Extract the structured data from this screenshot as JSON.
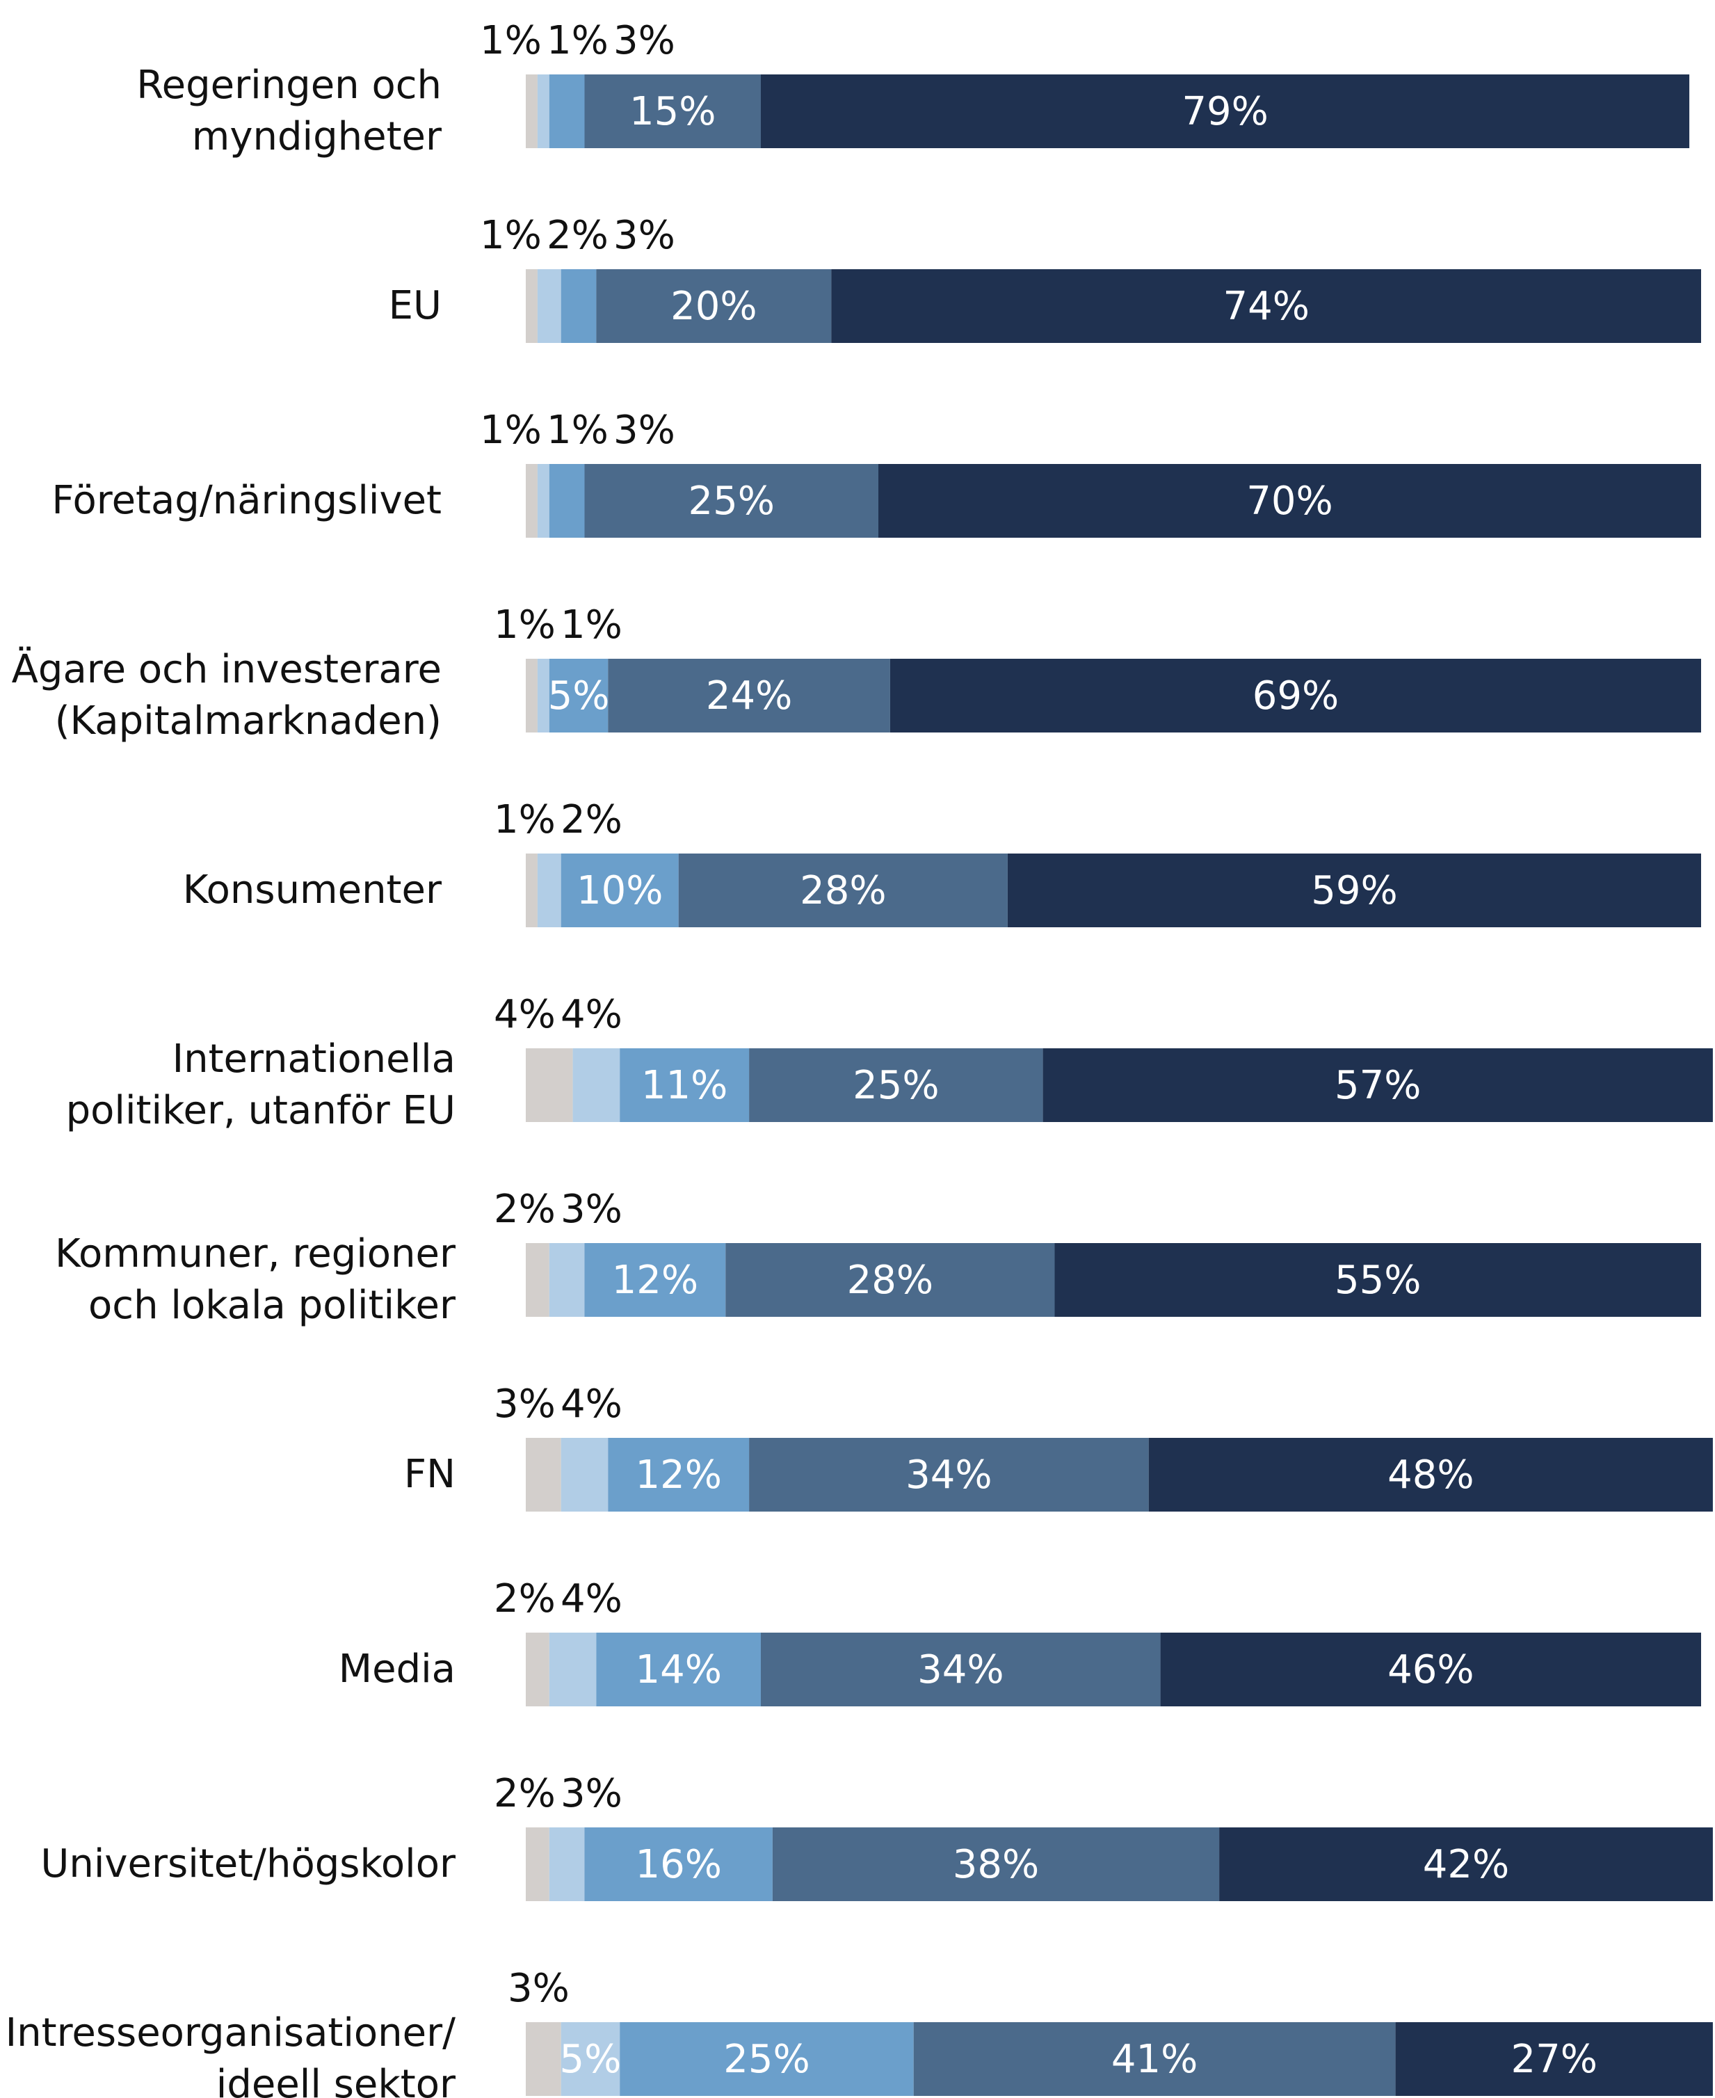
{
  "chart_data": {
    "type": "stacked_bar_horizontal",
    "categories": [
      "Regeringen och\nmyndigheter",
      "EU",
      "Företag/näringslivet",
      "Ägare och investerare\n(Kapitalmarknaden)",
      "Konsumenter",
      "Internationella\npolitiker, utanför EU",
      "Kommuner, regioner\noch lokala politiker",
      "FN",
      "Media",
      "Universitet/högskolor",
      "Intresseorganisationer/\nideell sektor"
    ],
    "series": [
      {
        "color": "#d3cfcc",
        "values": [
          1,
          1,
          1,
          1,
          1,
          4,
          2,
          3,
          2,
          2,
          3
        ]
      },
      {
        "color": "#b1cde6",
        "values": [
          1,
          2,
          1,
          1,
          2,
          4,
          3,
          4,
          4,
          3,
          5
        ]
      },
      {
        "color": "#6b9fcb",
        "values": [
          3,
          3,
          3,
          5,
          10,
          11,
          12,
          12,
          14,
          16,
          25
        ]
      },
      {
        "color": "#4b6a8b",
        "values": [
          15,
          20,
          25,
          24,
          28,
          25,
          28,
          34,
          34,
          38,
          41
        ]
      },
      {
        "color": "#1f3150",
        "values": [
          79,
          74,
          70,
          69,
          59,
          57,
          55,
          48,
          46,
          42,
          27
        ]
      }
    ],
    "value_labels": [
      [
        "1%",
        "1%",
        "1%",
        "1%",
        "1%",
        "4%",
        "2%",
        "3%",
        "2%",
        "2%",
        "3%"
      ],
      [
        "1%",
        "2%",
        "1%",
        "1%",
        "2%",
        "4%",
        "3%",
        "4%",
        "4%",
        "3%",
        "5%"
      ],
      [
        "3%",
        "3%",
        "3%",
        "5%",
        "10%",
        "11%",
        "12%",
        "12%",
        "14%",
        "16%",
        "25%"
      ],
      [
        "15%",
        "20%",
        "25%",
        "24%",
        "28%",
        "25%",
        "28%",
        "34%",
        "34%",
        "38%",
        "41%"
      ],
      [
        "79%",
        "74%",
        "70%",
        "69%",
        "59%",
        "57%",
        "55%",
        "48%",
        "46%",
        "42%",
        "27%"
      ]
    ]
  }
}
